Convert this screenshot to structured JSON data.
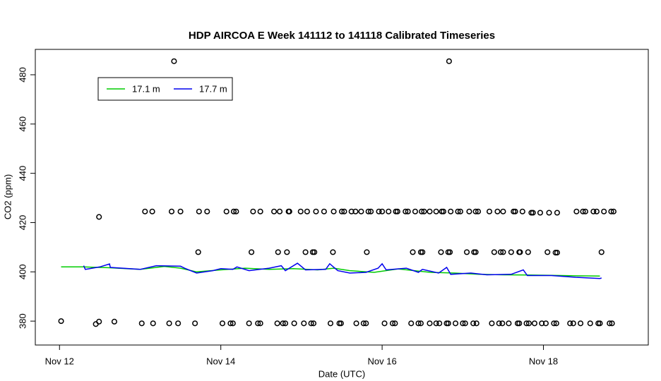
{
  "chart_data": {
    "type": "line",
    "title": "HDP AIRCOA E  Week 141112 to 141118  Calibrated Timeseries",
    "x_label": "Date (UTC)",
    "y_label": "CO2 (ppm)",
    "xlim": [
      11.7,
      19.3
    ],
    "ylim": [
      370.3,
      490.3
    ],
    "xticks": [
      {
        "value": 12,
        "label": "Nov 12"
      },
      {
        "value": 14,
        "label": "Nov 14"
      },
      {
        "value": 16,
        "label": "Nov 16"
      },
      {
        "value": 18,
        "label": "Nov 18"
      }
    ],
    "yticks": [
      380,
      400,
      420,
      440,
      460,
      480
    ],
    "legend_position": "top-left",
    "series": [
      {
        "name": "17.1 m",
        "color": "#00cc00",
        "x": [
          12.02,
          12.3,
          12.6,
          13.0,
          13.3,
          13.5,
          13.7,
          14.0,
          14.3,
          14.6,
          14.9,
          15.2,
          15.4,
          15.6,
          15.9,
          16.2,
          16.4,
          16.6,
          16.9,
          17.2,
          17.5,
          17.8,
          18.1,
          18.4,
          18.7
        ],
        "values": [
          402.0,
          402.0,
          401.7,
          401.0,
          402.2,
          401.5,
          400.0,
          400.8,
          401.5,
          401.0,
          401.3,
          400.8,
          401.5,
          400.5,
          399.8,
          401.2,
          400.5,
          399.8,
          399.5,
          399.0,
          398.8,
          398.7,
          398.6,
          398.4,
          398.3
        ]
      },
      {
        "name": "17.7 m",
        "color": "#0000ee",
        "x": [
          12.3,
          12.32,
          12.5,
          12.62,
          12.63,
          13.0,
          13.2,
          13.5,
          13.55,
          13.7,
          13.9,
          14.0,
          14.15,
          14.2,
          14.35,
          14.6,
          14.75,
          14.8,
          14.95,
          15.05,
          15.3,
          15.35,
          15.45,
          15.6,
          15.8,
          15.95,
          16.0,
          16.05,
          16.3,
          16.45,
          16.5,
          16.7,
          16.8,
          16.85,
          17.1,
          17.3,
          17.6,
          17.75,
          17.8,
          18.1,
          18.4,
          18.7,
          18.72
        ],
        "values": [
          402.5,
          401.0,
          402.0,
          403.2,
          401.8,
          401.0,
          402.5,
          402.3,
          401.5,
          399.5,
          400.5,
          401.3,
          401.0,
          402.0,
          400.5,
          401.5,
          402.5,
          400.5,
          403.5,
          400.8,
          401.0,
          403.3,
          400.5,
          399.5,
          399.8,
          401.5,
          403.3,
          400.8,
          401.5,
          399.8,
          401.0,
          399.5,
          401.8,
          399.0,
          399.5,
          398.8,
          399.0,
          400.8,
          398.5,
          398.5,
          397.8,
          397.3,
          397.5
        ]
      }
    ],
    "points": [
      {
        "x": 13.42,
        "y": 485.5
      },
      {
        "x": 16.83,
        "y": 485.5
      },
      {
        "x": 12.49,
        "y": 422.3
      },
      {
        "x": 13.06,
        "y": 424.5
      },
      {
        "x": 13.15,
        "y": 424.5
      },
      {
        "x": 13.39,
        "y": 424.5
      },
      {
        "x": 13.5,
        "y": 424.5
      },
      {
        "x": 13.73,
        "y": 424.5
      },
      {
        "x": 13.83,
        "y": 424.5
      },
      {
        "x": 14.07,
        "y": 424.5
      },
      {
        "x": 14.16,
        "y": 424.5
      },
      {
        "x": 14.19,
        "y": 424.5
      },
      {
        "x": 14.4,
        "y": 424.5
      },
      {
        "x": 14.49,
        "y": 424.5
      },
      {
        "x": 14.66,
        "y": 424.5
      },
      {
        "x": 14.73,
        "y": 424.5
      },
      {
        "x": 14.84,
        "y": 424.5
      },
      {
        "x": 14.85,
        "y": 424.5
      },
      {
        "x": 14.99,
        "y": 424.5
      },
      {
        "x": 15.07,
        "y": 424.5
      },
      {
        "x": 15.18,
        "y": 424.5
      },
      {
        "x": 15.28,
        "y": 424.5
      },
      {
        "x": 15.4,
        "y": 424.5
      },
      {
        "x": 15.5,
        "y": 424.5
      },
      {
        "x": 15.53,
        "y": 424.5
      },
      {
        "x": 15.62,
        "y": 424.5
      },
      {
        "x": 15.67,
        "y": 424.5
      },
      {
        "x": 15.74,
        "y": 424.5
      },
      {
        "x": 15.83,
        "y": 424.5
      },
      {
        "x": 15.86,
        "y": 424.5
      },
      {
        "x": 15.96,
        "y": 424.5
      },
      {
        "x": 16.0,
        "y": 424.5
      },
      {
        "x": 16.08,
        "y": 424.5
      },
      {
        "x": 16.17,
        "y": 424.5
      },
      {
        "x": 16.19,
        "y": 424.5
      },
      {
        "x": 16.29,
        "y": 424.5
      },
      {
        "x": 16.32,
        "y": 424.5
      },
      {
        "x": 16.41,
        "y": 424.5
      },
      {
        "x": 16.49,
        "y": 424.5
      },
      {
        "x": 16.52,
        "y": 424.5
      },
      {
        "x": 16.59,
        "y": 424.5
      },
      {
        "x": 16.67,
        "y": 424.5
      },
      {
        "x": 16.74,
        "y": 424.5
      },
      {
        "x": 16.76,
        "y": 424.5
      },
      {
        "x": 16.85,
        "y": 424.5
      },
      {
        "x": 16.94,
        "y": 424.5
      },
      {
        "x": 16.97,
        "y": 424.5
      },
      {
        "x": 17.08,
        "y": 424.5
      },
      {
        "x": 17.16,
        "y": 424.5
      },
      {
        "x": 17.19,
        "y": 424.5
      },
      {
        "x": 17.33,
        "y": 424.5
      },
      {
        "x": 17.43,
        "y": 424.5
      },
      {
        "x": 17.5,
        "y": 424.5
      },
      {
        "x": 17.63,
        "y": 424.5
      },
      {
        "x": 17.65,
        "y": 424.5
      },
      {
        "x": 17.74,
        "y": 424.5
      },
      {
        "x": 17.85,
        "y": 424.0
      },
      {
        "x": 17.87,
        "y": 424.0
      },
      {
        "x": 17.96,
        "y": 424.0
      },
      {
        "x": 18.07,
        "y": 424.0
      },
      {
        "x": 18.17,
        "y": 424.0
      },
      {
        "x": 18.41,
        "y": 424.5
      },
      {
        "x": 18.49,
        "y": 424.5
      },
      {
        "x": 18.52,
        "y": 424.5
      },
      {
        "x": 18.62,
        "y": 424.5
      },
      {
        "x": 18.66,
        "y": 424.5
      },
      {
        "x": 18.75,
        "y": 424.5
      },
      {
        "x": 18.84,
        "y": 424.5
      },
      {
        "x": 18.87,
        "y": 424.5
      },
      {
        "x": 13.72,
        "y": 408.0
      },
      {
        "x": 14.38,
        "y": 408.0
      },
      {
        "x": 14.71,
        "y": 408.0
      },
      {
        "x": 14.82,
        "y": 408.0
      },
      {
        "x": 15.05,
        "y": 408.0
      },
      {
        "x": 15.14,
        "y": 408.0
      },
      {
        "x": 15.16,
        "y": 408.0
      },
      {
        "x": 15.39,
        "y": 408.0
      },
      {
        "x": 15.81,
        "y": 408.0
      },
      {
        "x": 16.38,
        "y": 408.0
      },
      {
        "x": 16.48,
        "y": 408.0
      },
      {
        "x": 16.5,
        "y": 408.0
      },
      {
        "x": 16.73,
        "y": 408.0
      },
      {
        "x": 16.82,
        "y": 408.0
      },
      {
        "x": 16.84,
        "y": 408.0
      },
      {
        "x": 17.05,
        "y": 408.0
      },
      {
        "x": 17.14,
        "y": 408.0
      },
      {
        "x": 17.16,
        "y": 408.0
      },
      {
        "x": 17.39,
        "y": 408.0
      },
      {
        "x": 17.47,
        "y": 408.0
      },
      {
        "x": 17.5,
        "y": 408.0
      },
      {
        "x": 17.6,
        "y": 408.0
      },
      {
        "x": 17.7,
        "y": 408.0
      },
      {
        "x": 17.71,
        "y": 408.0
      },
      {
        "x": 17.81,
        "y": 408.0
      },
      {
        "x": 18.05,
        "y": 408.0
      },
      {
        "x": 18.15,
        "y": 407.8
      },
      {
        "x": 18.17,
        "y": 407.8
      },
      {
        "x": 18.72,
        "y": 408.0
      },
      {
        "x": 12.02,
        "y": 380.0
      },
      {
        "x": 12.45,
        "y": 378.8
      },
      {
        "x": 12.49,
        "y": 379.8
      },
      {
        "x": 12.68,
        "y": 379.8
      },
      {
        "x": 13.02,
        "y": 379.1
      },
      {
        "x": 13.16,
        "y": 379.1
      },
      {
        "x": 13.36,
        "y": 379.1
      },
      {
        "x": 13.47,
        "y": 379.1
      },
      {
        "x": 13.68,
        "y": 379.1
      },
      {
        "x": 14.02,
        "y": 379.1
      },
      {
        "x": 14.12,
        "y": 379.1
      },
      {
        "x": 14.15,
        "y": 379.1
      },
      {
        "x": 14.35,
        "y": 379.1
      },
      {
        "x": 14.46,
        "y": 379.1
      },
      {
        "x": 14.49,
        "y": 379.1
      },
      {
        "x": 14.7,
        "y": 379.1
      },
      {
        "x": 14.77,
        "y": 379.1
      },
      {
        "x": 14.8,
        "y": 379.1
      },
      {
        "x": 14.91,
        "y": 379.1
      },
      {
        "x": 15.03,
        "y": 379.1
      },
      {
        "x": 15.12,
        "y": 379.1
      },
      {
        "x": 15.15,
        "y": 379.1
      },
      {
        "x": 15.36,
        "y": 379.1
      },
      {
        "x": 15.47,
        "y": 379.1
      },
      {
        "x": 15.49,
        "y": 379.1
      },
      {
        "x": 15.68,
        "y": 379.1
      },
      {
        "x": 15.77,
        "y": 379.1
      },
      {
        "x": 15.8,
        "y": 379.1
      },
      {
        "x": 16.03,
        "y": 379.1
      },
      {
        "x": 16.13,
        "y": 379.1
      },
      {
        "x": 16.16,
        "y": 379.1
      },
      {
        "x": 16.36,
        "y": 379.1
      },
      {
        "x": 16.45,
        "y": 379.1
      },
      {
        "x": 16.48,
        "y": 379.1
      },
      {
        "x": 16.59,
        "y": 379.1
      },
      {
        "x": 16.67,
        "y": 379.1
      },
      {
        "x": 16.71,
        "y": 379.1
      },
      {
        "x": 16.8,
        "y": 379.1
      },
      {
        "x": 16.82,
        "y": 379.1
      },
      {
        "x": 16.91,
        "y": 379.1
      },
      {
        "x": 17.0,
        "y": 379.1
      },
      {
        "x": 17.03,
        "y": 379.1
      },
      {
        "x": 17.13,
        "y": 379.1
      },
      {
        "x": 17.17,
        "y": 379.1
      },
      {
        "x": 17.36,
        "y": 379.1
      },
      {
        "x": 17.45,
        "y": 379.1
      },
      {
        "x": 17.49,
        "y": 379.1
      },
      {
        "x": 17.57,
        "y": 379.1
      },
      {
        "x": 17.68,
        "y": 379.1
      },
      {
        "x": 17.7,
        "y": 379.1
      },
      {
        "x": 17.79,
        "y": 379.1
      },
      {
        "x": 17.82,
        "y": 379.1
      },
      {
        "x": 17.89,
        "y": 379.1
      },
      {
        "x": 17.98,
        "y": 379.1
      },
      {
        "x": 18.03,
        "y": 379.1
      },
      {
        "x": 18.13,
        "y": 379.1
      },
      {
        "x": 18.16,
        "y": 379.1
      },
      {
        "x": 18.33,
        "y": 379.1
      },
      {
        "x": 18.37,
        "y": 379.1
      },
      {
        "x": 18.46,
        "y": 379.1
      },
      {
        "x": 18.58,
        "y": 379.1
      },
      {
        "x": 18.68,
        "y": 379.1
      },
      {
        "x": 18.7,
        "y": 379.1
      },
      {
        "x": 18.82,
        "y": 379.1
      },
      {
        "x": 18.85,
        "y": 379.1
      }
    ]
  }
}
